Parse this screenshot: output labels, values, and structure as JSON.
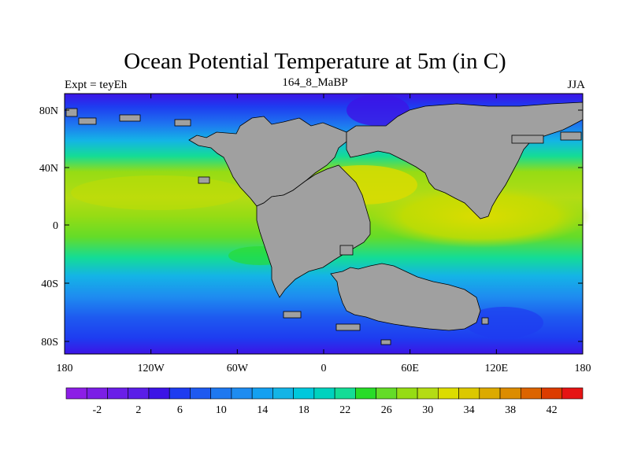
{
  "title": "Ocean Potential Temperature at 5m (in C)",
  "left_label": "Expt = teyEh",
  "center_label": "164_8_MaBP",
  "right_label": "JJA",
  "lat_labels": [
    "80N",
    "40N",
    "0",
    "40S",
    "80S"
  ],
  "lon_labels": [
    "180",
    "120W",
    "60W",
    "0",
    "60E",
    "120E",
    "180"
  ],
  "colorbar": {
    "labels": [
      "-2",
      "2",
      "6",
      "10",
      "14",
      "18",
      "22",
      "26",
      "30",
      "34",
      "38",
      "42"
    ],
    "colors": [
      "#8c1ee6",
      "#7b1ee6",
      "#6a1ee8",
      "#5a1ee8",
      "#3c14e6",
      "#1e3cf0",
      "#1e5af0",
      "#1e78f0",
      "#1e8cf0",
      "#14a0f0",
      "#14b4e6",
      "#00c8dc",
      "#00d2be",
      "#14dc96",
      "#28dc28",
      "#64dc28",
      "#96dc14",
      "#b4dc14",
      "#dcdc00",
      "#dcc800",
      "#dcaa00",
      "#dc8c00",
      "#dc6400",
      "#dc3c00",
      "#e61414"
    ]
  },
  "map_data": {
    "region": "global ocean, lon 180W-180E, lat 90S-90N",
    "variable": "Ocean potential temperature at 5 m",
    "units": "C",
    "season": "JJA",
    "experiment": "teyEh",
    "time": "164_8_MaBP",
    "land_color": "#a0a0a0"
  }
}
